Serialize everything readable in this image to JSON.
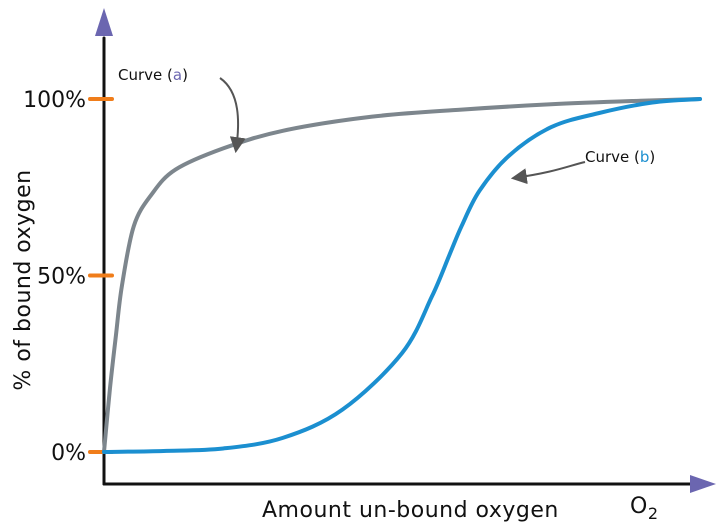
{
  "chart_data": {
    "type": "line",
    "xlabel": "Amount un-bound oxygen",
    "xlabel_suffix": "O2",
    "ylabel": "% of bound oxygen",
    "ytick_labels": [
      "0%",
      "50%",
      "100%"
    ],
    "yticks": [
      0,
      50,
      100
    ],
    "ylim": [
      0,
      100
    ],
    "xlim": [
      0,
      1
    ],
    "grid": false,
    "legend": "none",
    "colors": {
      "axis": "#111111",
      "arrowhead": "#6b66b0",
      "tick_mark": "#f07d1a",
      "curve_a": "#7d868d",
      "curve_b": "#1b8fd0",
      "annotation_arrow": "#555555"
    },
    "annotations": [
      {
        "prefix": "Curve (",
        "letter": "a",
        "suffix": ")",
        "letter_color": "#6b66b0"
      },
      {
        "prefix": "Curve (",
        "letter": "b",
        "suffix": ")",
        "letter_color": "#1b8fd0"
      }
    ],
    "series": [
      {
        "key": "a",
        "x": [
          0,
          0.01,
          0.02,
          0.03,
          0.05,
          0.08,
          0.12,
          0.2,
          0.3,
          0.45,
          0.6,
          0.75,
          0.9,
          1.0
        ],
        "y": [
          0,
          18,
          33,
          47,
          64,
          73,
          80,
          86,
          91,
          95,
          97,
          98.5,
          99.5,
          100
        ]
      },
      {
        "key": "b",
        "x": [
          0,
          0.1,
          0.2,
          0.3,
          0.4,
          0.5,
          0.55,
          0.58,
          0.6,
          0.63,
          0.68,
          0.75,
          0.83,
          0.92,
          1.0
        ],
        "y": [
          0,
          0.3,
          1,
          4,
          12,
          28,
          44,
          56,
          64,
          74,
          84,
          92,
          96,
          99,
          100
        ]
      }
    ]
  }
}
